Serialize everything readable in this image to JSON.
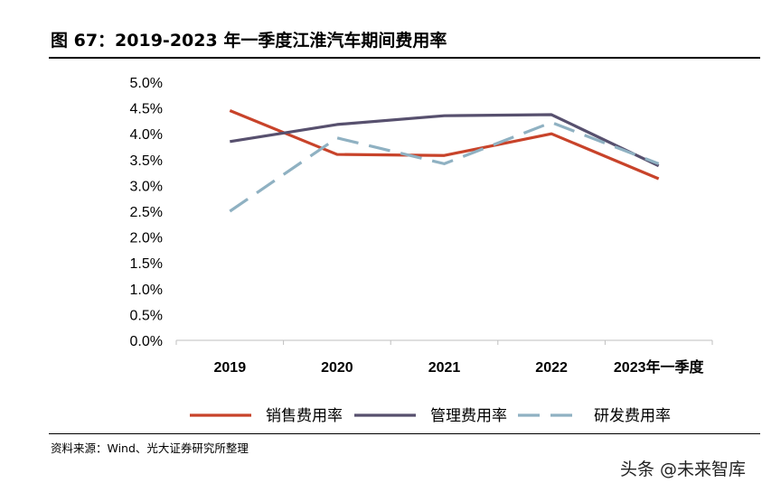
{
  "title": "图 67：2019-2023 年一季度江淮汽车期间费用率",
  "source": "资料来源：Wind、光大证券研究所整理",
  "watermark": "头条 @未来智库",
  "chart_data": {
    "type": "line",
    "categories": [
      "2019",
      "2020",
      "2021",
      "2022",
      "2023年一季度"
    ],
    "ylim": [
      0,
      5
    ],
    "yticks": [
      "0.0%",
      "0.5%",
      "1.0%",
      "1.5%",
      "2.0%",
      "2.5%",
      "3.0%",
      "3.5%",
      "4.0%",
      "4.5%",
      "5.0%"
    ],
    "series": [
      {
        "name": "销售费用率",
        "color": "#c8432a",
        "dash": false,
        "values": [
          4.45,
          3.6,
          3.58,
          4.0,
          3.13
        ]
      },
      {
        "name": "管理费用率",
        "color": "#57506e",
        "dash": false,
        "values": [
          3.85,
          4.18,
          4.35,
          4.37,
          3.38
        ]
      },
      {
        "name": "研发费用率",
        "color": "#8fb1c2",
        "dash": true,
        "values": [
          2.5,
          3.92,
          3.42,
          4.22,
          3.42
        ]
      }
    ],
    "legend_position": "bottom"
  }
}
